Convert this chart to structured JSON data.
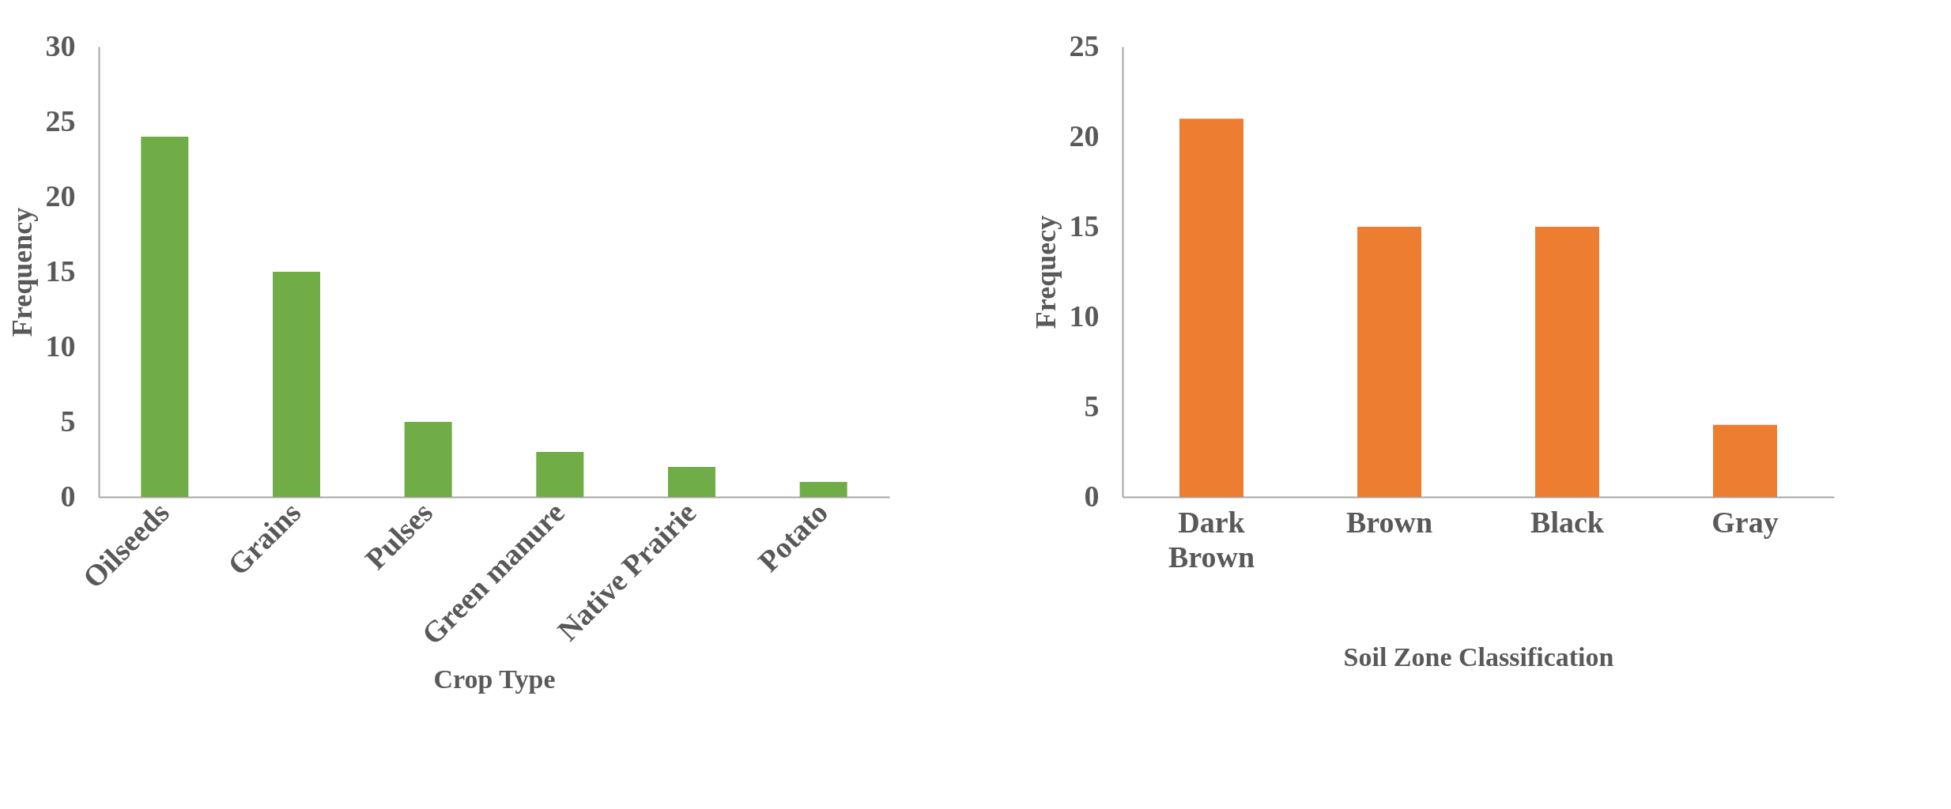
{
  "chart_data": [
    {
      "type": "bar",
      "xlabel": "Crop Type",
      "ylabel": "Frequency",
      "categories": [
        "Oilseeds",
        "Grains",
        "Pulses",
        "Green manure",
        "Native Prairie",
        "Potato"
      ],
      "values": [
        24,
        15,
        5,
        3,
        2,
        1
      ],
      "color": "#70ad47",
      "ylim": [
        0,
        30
      ],
      "yticks": [
        0,
        5,
        10,
        15,
        20,
        25,
        30
      ]
    },
    {
      "type": "bar",
      "xlabel": "Soil Zone Classification",
      "ylabel": "Frequecy",
      "categories": [
        "Dark Brown",
        "Brown",
        "Black",
        "Gray"
      ],
      "values": [
        21,
        15,
        15,
        4
      ],
      "color": "#ed7d31",
      "ylim": [
        0,
        25
      ],
      "yticks": [
        0,
        5,
        10,
        15,
        20,
        25
      ]
    }
  ]
}
